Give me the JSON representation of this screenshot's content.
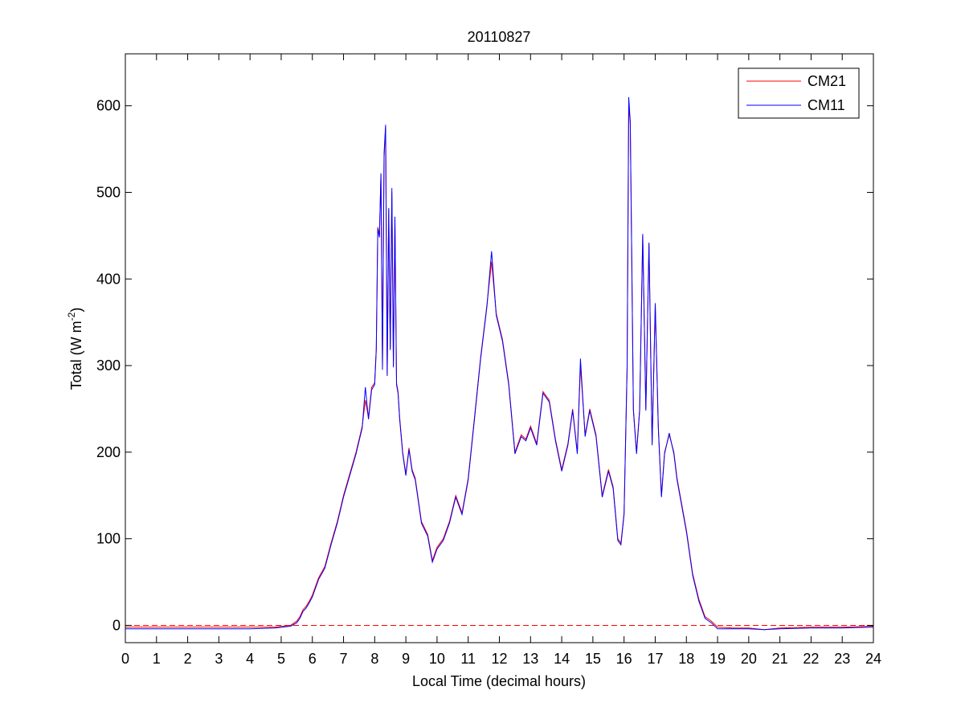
{
  "chart_data": {
    "type": "line",
    "title": "20110827",
    "xlabel": "Local Time (decimal hours)",
    "ylabel": {
      "main": "Total (W m",
      "sup": "-2",
      "close": ")"
    },
    "xlim": [
      0,
      24
    ],
    "ylim": [
      -20,
      660
    ],
    "xticks": [
      0,
      1,
      2,
      3,
      4,
      5,
      6,
      7,
      8,
      9,
      10,
      11,
      12,
      13,
      14,
      15,
      16,
      17,
      18,
      19,
      20,
      21,
      22,
      23,
      24
    ],
    "yticks": [
      0,
      100,
      200,
      300,
      400,
      500,
      600
    ],
    "grid": false,
    "legend_position": "top-right",
    "reference_line": {
      "y": 0,
      "style": "dashed",
      "color": "#ff0000"
    },
    "series": [
      {
        "name": "CM21",
        "color": "#ff0000",
        "x": [
          0,
          1,
          2,
          3,
          4,
          4.8,
          5.3,
          5.5,
          5.6,
          5.7,
          5.8,
          5.9,
          6,
          6.2,
          6.4,
          6.6,
          6.8,
          7,
          7.2,
          7.4,
          7.6,
          7.7,
          7.8,
          7.9,
          8,
          8.05,
          8.1,
          8.15,
          8.2,
          8.25,
          8.3,
          8.35,
          8.4,
          8.45,
          8.5,
          8.55,
          8.6,
          8.65,
          8.7,
          8.75,
          8.8,
          8.9,
          9,
          9.1,
          9.2,
          9.3,
          9.5,
          9.7,
          9.85,
          10,
          10.2,
          10.4,
          10.6,
          10.8,
          11,
          11.2,
          11.4,
          11.6,
          11.75,
          11.9,
          12.1,
          12.3,
          12.5,
          12.7,
          12.85,
          13,
          13.2,
          13.4,
          13.6,
          13.8,
          14,
          14.2,
          14.35,
          14.5,
          14.6,
          14.75,
          14.9,
          15.1,
          15.3,
          15.5,
          15.65,
          15.8,
          15.9,
          16,
          16.1,
          16.15,
          16.2,
          16.3,
          16.4,
          16.5,
          16.6,
          16.7,
          16.8,
          16.9,
          17,
          17.1,
          17.2,
          17.3,
          17.45,
          17.6,
          17.7,
          17.8,
          17.9,
          18,
          18.2,
          18.4,
          18.6,
          18.8,
          19,
          19.5,
          20,
          20.5,
          21,
          22,
          23,
          24
        ],
        "values": [
          -2,
          -2,
          -2,
          -2,
          -2,
          -2,
          0,
          5,
          10,
          18,
          22,
          28,
          35,
          55,
          68,
          95,
          120,
          150,
          175,
          200,
          230,
          260,
          240,
          275,
          280,
          320,
          460,
          450,
          520,
          300,
          540,
          575,
          290,
          480,
          320,
          500,
          300,
          470,
          280,
          270,
          240,
          200,
          175,
          205,
          180,
          170,
          120,
          105,
          75,
          90,
          100,
          120,
          150,
          130,
          170,
          240,
          310,
          370,
          420,
          360,
          330,
          280,
          200,
          220,
          215,
          230,
          210,
          270,
          260,
          215,
          180,
          210,
          250,
          200,
          300,
          220,
          250,
          220,
          150,
          180,
          160,
          100,
          95,
          130,
          300,
          600,
          580,
          250,
          200,
          250,
          450,
          250,
          440,
          210,
          370,
          230,
          150,
          200,
          220,
          200,
          170,
          150,
          130,
          110,
          60,
          30,
          10,
          5,
          -2,
          -3,
          -3,
          -5,
          -3,
          -2,
          -2,
          -1
        ]
      },
      {
        "name": "CM11",
        "color": "#0000ff",
        "x": [
          0,
          1,
          2,
          3,
          4,
          4.8,
          5.3,
          5.5,
          5.6,
          5.7,
          5.8,
          5.9,
          6,
          6.2,
          6.4,
          6.6,
          6.8,
          7,
          7.2,
          7.4,
          7.6,
          7.7,
          7.8,
          7.9,
          8,
          8.05,
          8.1,
          8.15,
          8.2,
          8.25,
          8.3,
          8.35,
          8.4,
          8.45,
          8.5,
          8.55,
          8.6,
          8.65,
          8.7,
          8.75,
          8.8,
          8.9,
          9,
          9.1,
          9.2,
          9.3,
          9.5,
          9.7,
          9.85,
          10,
          10.2,
          10.4,
          10.6,
          10.8,
          11,
          11.2,
          11.4,
          11.6,
          11.75,
          11.9,
          12.1,
          12.3,
          12.5,
          12.7,
          12.85,
          13,
          13.2,
          13.4,
          13.6,
          13.8,
          14,
          14.2,
          14.35,
          14.5,
          14.6,
          14.75,
          14.9,
          15.1,
          15.3,
          15.5,
          15.65,
          15.8,
          15.9,
          16,
          16.1,
          16.15,
          16.2,
          16.3,
          16.4,
          16.5,
          16.6,
          16.7,
          16.8,
          16.9,
          17,
          17.1,
          17.2,
          17.3,
          17.45,
          17.6,
          17.7,
          17.8,
          17.9,
          18,
          18.2,
          18.4,
          18.6,
          18.8,
          19,
          19.5,
          20,
          20.5,
          21,
          22,
          23,
          24
        ],
        "values": [
          -4,
          -4,
          -4,
          -4,
          -4,
          -3,
          -1,
          3,
          8,
          16,
          20,
          26,
          33,
          53,
          66,
          93,
          118,
          148,
          173,
          198,
          228,
          275,
          238,
          272,
          278,
          318,
          458,
          448,
          522,
          295,
          545,
          578,
          288,
          482,
          318,
          505,
          298,
          472,
          278,
          268,
          238,
          198,
          173,
          203,
          178,
          168,
          118,
          103,
          73,
          88,
          98,
          118,
          148,
          128,
          168,
          238,
          308,
          368,
          432,
          358,
          328,
          278,
          198,
          218,
          213,
          228,
          208,
          268,
          258,
          213,
          178,
          208,
          248,
          198,
          308,
          218,
          248,
          218,
          148,
          178,
          158,
          98,
          93,
          128,
          298,
          610,
          582,
          248,
          198,
          248,
          452,
          248,
          442,
          208,
          372,
          228,
          148,
          198,
          222,
          198,
          168,
          148,
          128,
          108,
          58,
          28,
          8,
          3,
          -4,
          -4,
          -4,
          -5,
          -4,
          -3,
          -3,
          -2
        ]
      }
    ]
  }
}
